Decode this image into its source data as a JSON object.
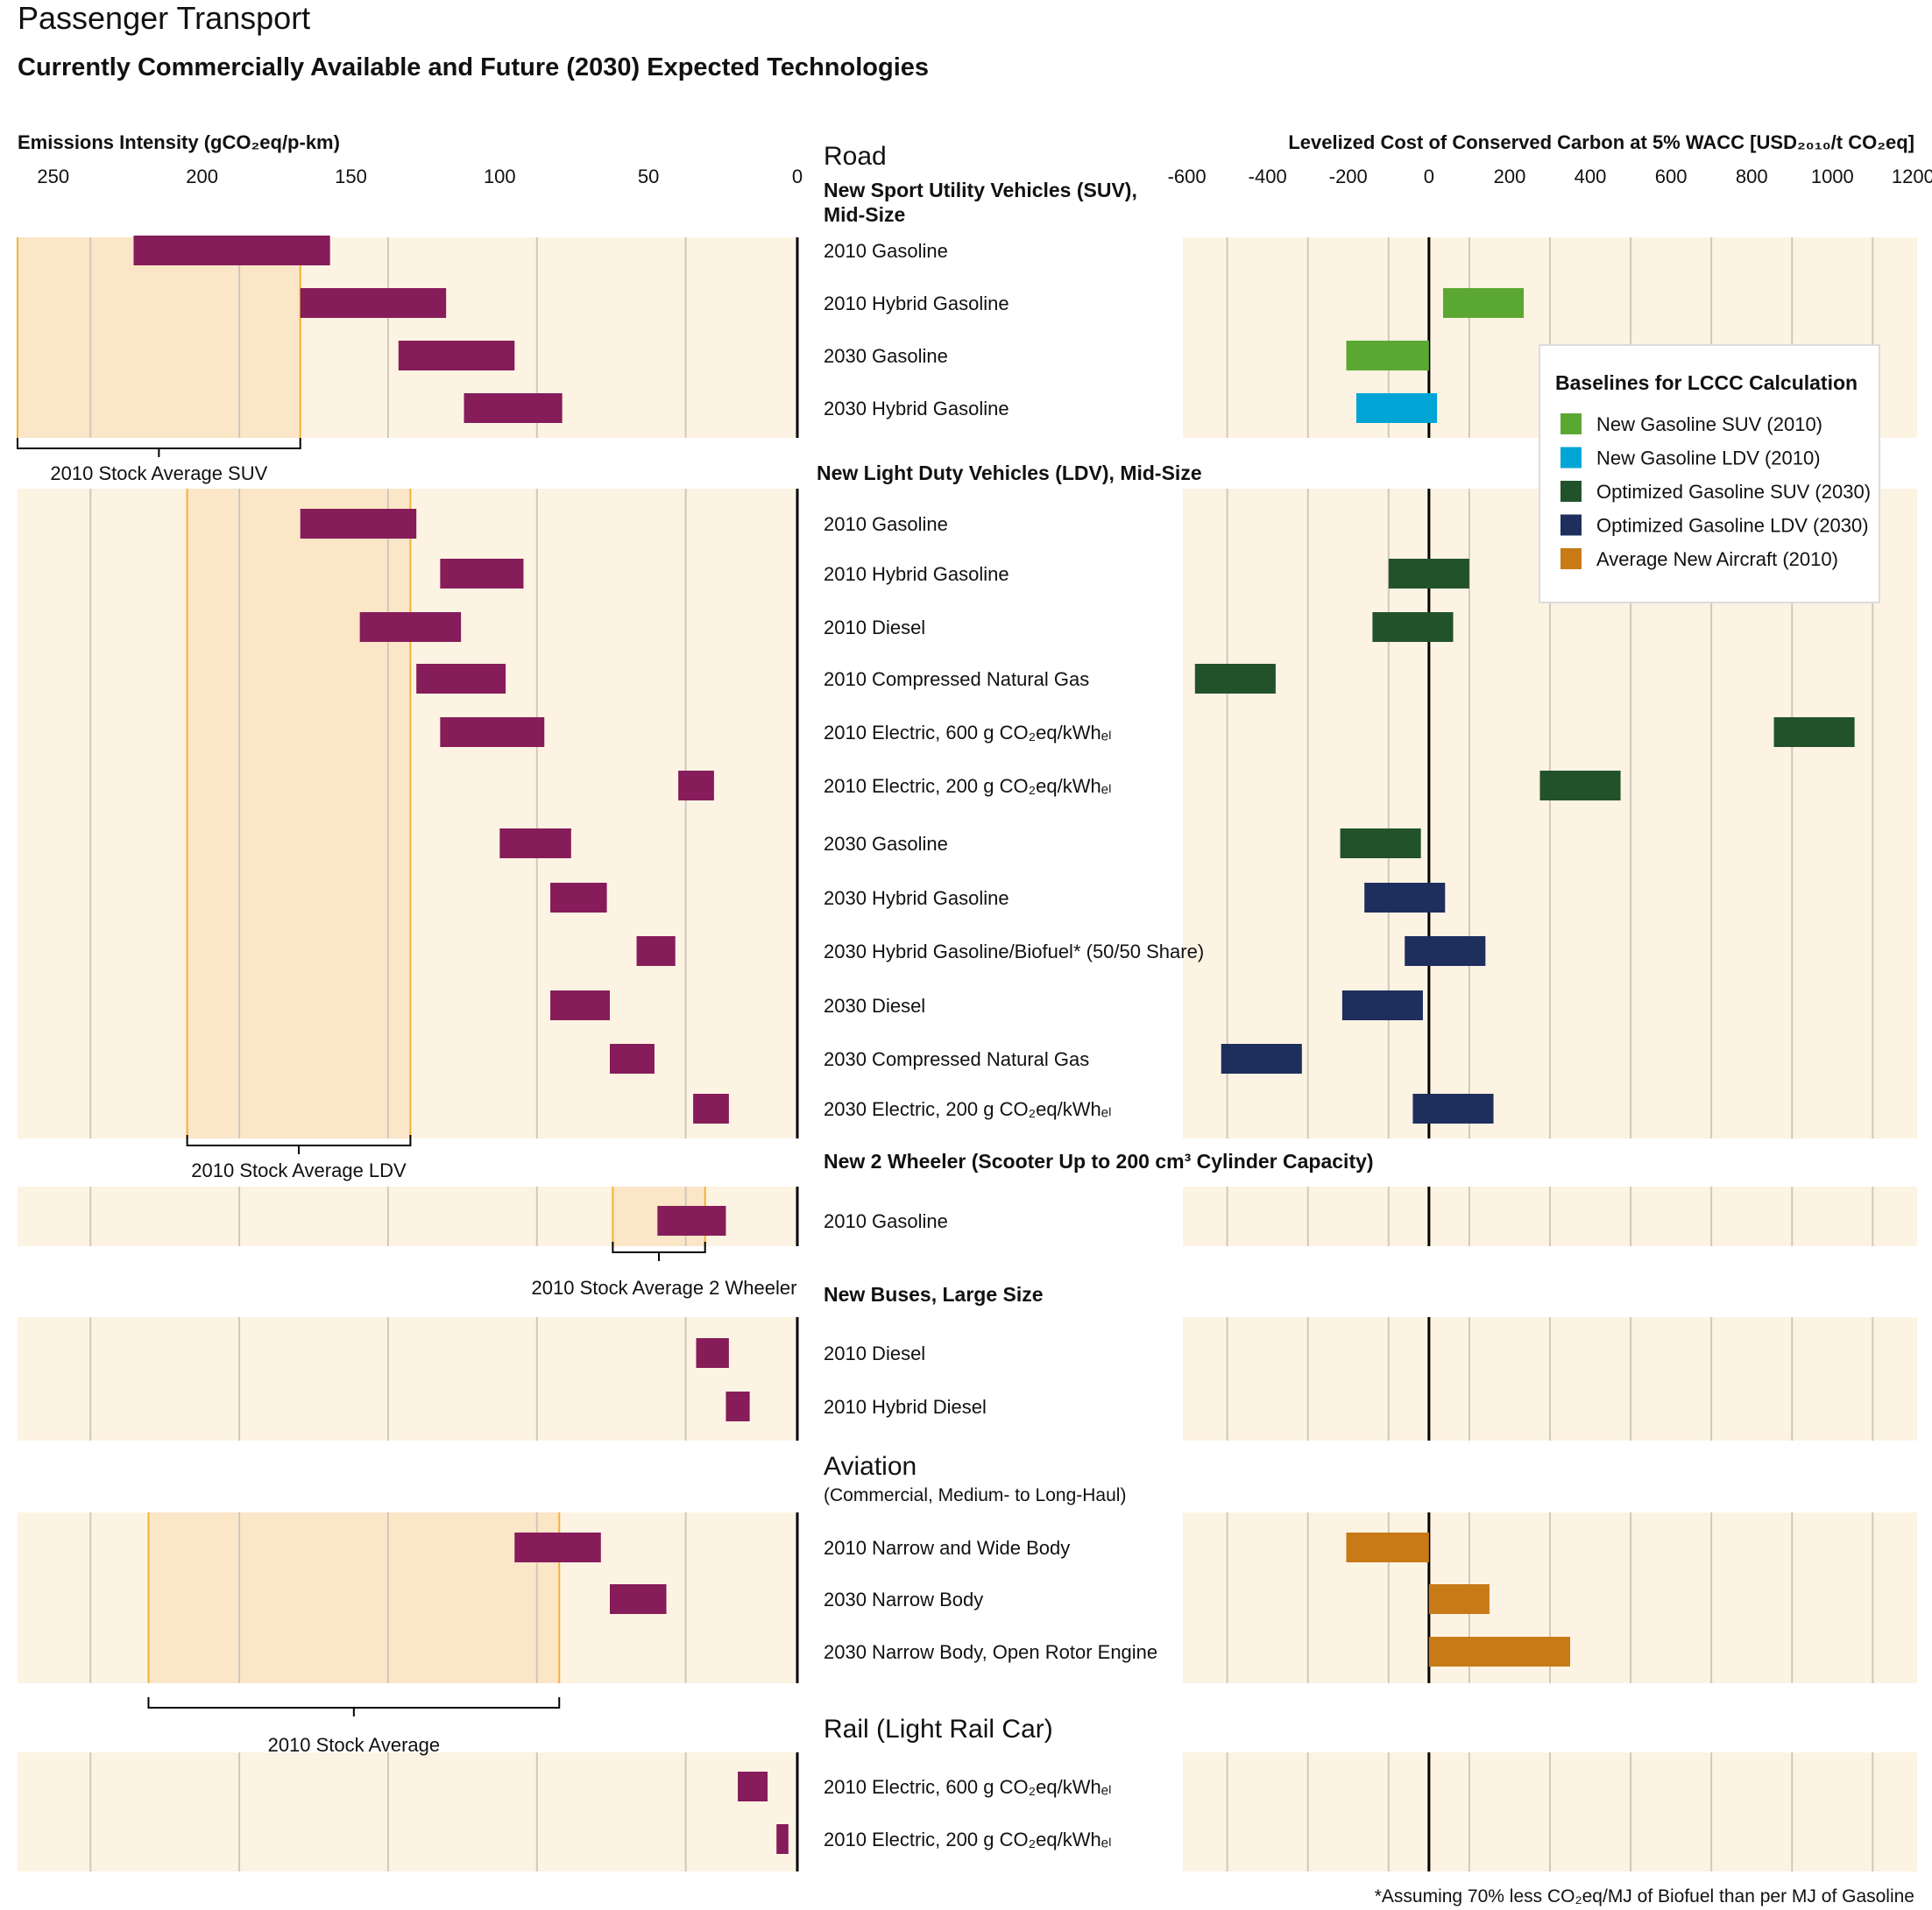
{
  "title": "Passenger Transport",
  "subtitle": "Currently Commercially Available and Future (2030) Expected Technologies",
  "footnote": "*Assuming 70% less CO₂eq/MJ of Biofuel than per MJ of Gasoline",
  "colors": {
    "panel_bg": "#fdf3e3",
    "stock_band": "#fbe6c8",
    "stock_line": "#f2b233",
    "emission_bar": "#861c59",
    "new_gasoline_suv_2010": "#5aa832",
    "new_gasoline_ldv_2010": "#00a5d6",
    "optimized_gasoline_suv_2030": "#22522a",
    "optimized_gasoline_ldv_2030": "#1e2f5d",
    "average_new_aircraft_2010": "#c87a17"
  },
  "chart_data": [
    {
      "type": "bar",
      "orientation": "horizontal-range",
      "xlabel": "Emissions Intensity (gCO₂eq/p-km)",
      "xlim": [
        262,
        0
      ],
      "xticks": [
        250,
        200,
        150,
        100,
        50,
        0
      ],
      "grid": true,
      "sections": [
        {
          "section": "Road",
          "group": "New Sport Utility Vehicles (SUV), Mid-Size",
          "stock_average": {
            "label": "2010 Stock Average SUV",
            "range": [
              262,
              167
            ]
          },
          "items": [
            {
              "label": "2010 Gasoline",
              "range": [
                223,
                157
              ]
            },
            {
              "label": "2010 Hybrid Gasoline",
              "range": [
                167,
                118
              ]
            },
            {
              "label": "2030 Gasoline",
              "range": [
                134,
                95
              ]
            },
            {
              "label": "2030 Hybrid Gasoline",
              "range": [
                112,
                79
              ]
            }
          ]
        },
        {
          "group": "New Light Duty Vehicles (LDV), Mid-Size",
          "stock_average": {
            "label": "2010 Stock Average LDV",
            "range": [
              205,
              130
            ]
          },
          "items": [
            {
              "label": "2010 Gasoline",
              "range": [
                167,
                128
              ]
            },
            {
              "label": "2010 Hybrid Gasoline",
              "range": [
                120,
                92
              ]
            },
            {
              "label": "2010 Diesel",
              "range": [
                147,
                113
              ]
            },
            {
              "label": "2010 Compressed Natural Gas",
              "range": [
                128,
                98
              ]
            },
            {
              "label": "2010 Electric, 600 g CO₂eq/kWhₑₗ",
              "range": [
                120,
                85
              ]
            },
            {
              "label": "2010 Electric, 200 g CO₂eq/kWhₑₗ",
              "range": [
                40,
                28
              ]
            },
            {
              "label": "2030 Gasoline",
              "range": [
                100,
                76
              ]
            },
            {
              "label": "2030 Hybrid Gasoline",
              "range": [
                83,
                64
              ]
            },
            {
              "label": "2030 Hybrid Gasoline/Biofuel* (50/50 Share)",
              "range": [
                54,
                41
              ]
            },
            {
              "label": "2030 Diesel",
              "range": [
                83,
                63
              ]
            },
            {
              "label": "2030 Compressed Natural Gas",
              "range": [
                63,
                48
              ]
            },
            {
              "label": "2030 Electric, 200 g CO₂eq/kWhₑₗ",
              "range": [
                35,
                23
              ]
            }
          ]
        },
        {
          "group": "New 2 Wheeler (Scooter Up to 200 cm³ Cylinder Capacity)",
          "stock_average": {
            "label": "2010 Stock Average 2 Wheeler",
            "range": [
              62,
              31
            ]
          },
          "items": [
            {
              "label": "2010 Gasoline",
              "range": [
                47,
                24
              ]
            }
          ]
        },
        {
          "group": "New Buses, Large Size",
          "items": [
            {
              "label": "2010 Diesel",
              "range": [
                34,
                23
              ]
            },
            {
              "label": "2010 Hybrid Diesel",
              "range": [
                24,
                16
              ]
            }
          ]
        },
        {
          "section": "Aviation",
          "group": "(Commercial, Medium- to Long-Haul)",
          "stock_average": {
            "label": "2010 Stock Average",
            "range": [
              218,
              80
            ]
          },
          "items": [
            {
              "label": "2010 Narrow and Wide Body",
              "range": [
                95,
                66
              ]
            },
            {
              "label": "2030 Narrow Body",
              "range": [
                63,
                44
              ]
            },
            {
              "label": "2030 Narrow Body, Open Rotor Engine",
              "range": null
            }
          ]
        },
        {
          "section": "Rail (Light Rail Car)",
          "items": [
            {
              "label": "2010 Electric, 600 g CO₂eq/kWhₑₗ",
              "range": [
                20,
                10
              ]
            },
            {
              "label": "2010 Electric, 200 g CO₂eq/kWhₑₗ",
              "range": [
                7,
                3
              ]
            }
          ]
        }
      ]
    },
    {
      "type": "bar",
      "orientation": "horizontal-range",
      "xlabel": "Levelized Cost of Conserved Carbon at 5% WACC [USD₂₀₁₀/t CO₂eq]",
      "xlim": [
        -610,
        1210
      ],
      "xticks": [
        -600,
        -400,
        -200,
        0,
        200,
        400,
        600,
        800,
        1000,
        1200
      ],
      "grid": true,
      "legend": {
        "title": "Baselines for LCCC Calculation",
        "position": "top-right",
        "entries": [
          {
            "key": "new_gasoline_suv_2010",
            "label": "New Gasoline SUV (2010)"
          },
          {
            "key": "new_gasoline_ldv_2010",
            "label": "New Gasoline LDV (2010)"
          },
          {
            "key": "optimized_gasoline_suv_2030",
            "label": "Optimized Gasoline SUV (2030)"
          },
          {
            "key": "optimized_gasoline_ldv_2030",
            "label": "Optimized Gasoline LDV (2030)"
          },
          {
            "key": "average_new_aircraft_2010",
            "label": "Average New Aircraft (2010)"
          }
        ]
      },
      "bars": [
        {
          "label": "SUV 2010 Hybrid Gasoline",
          "range": [
            35,
            235
          ],
          "baseline": "new_gasoline_suv_2010"
        },
        {
          "label": "SUV 2030 Gasoline",
          "range": [
            -205,
            0
          ],
          "baseline": "new_gasoline_suv_2010"
        },
        {
          "label": "SUV 2030 Hybrid Gasoline",
          "range": [
            -180,
            20
          ],
          "baseline": "new_gasoline_ldv_2010"
        },
        {
          "label": "LDV 2010 Hybrid Gasoline",
          "range": [
            -100,
            100
          ],
          "baseline": "optimized_gasoline_suv_2030"
        },
        {
          "label": "LDV 2010 Diesel",
          "range": [
            -140,
            60
          ],
          "baseline": "optimized_gasoline_suv_2030"
        },
        {
          "label": "LDV 2010 Compressed Natural Gas",
          "range": [
            -580,
            -380
          ],
          "baseline": "optimized_gasoline_suv_2030"
        },
        {
          "label": "LDV 2010 Electric, 600 g",
          "range": [
            855,
            1055
          ],
          "baseline": "optimized_gasoline_suv_2030"
        },
        {
          "label": "LDV 2010 Electric, 200 g",
          "range": [
            275,
            475
          ],
          "baseline": "optimized_gasoline_suv_2030"
        },
        {
          "label": "LDV 2030 Gasoline",
          "range": [
            -220,
            -20
          ],
          "baseline": "optimized_gasoline_suv_2030"
        },
        {
          "label": "LDV 2030 Hybrid Gasoline",
          "range": [
            -160,
            40
          ],
          "baseline": "optimized_gasoline_ldv_2030"
        },
        {
          "label": "LDV 2030 Hybrid Gasoline/Biofuel",
          "range": [
            -60,
            140
          ],
          "baseline": "optimized_gasoline_ldv_2030"
        },
        {
          "label": "LDV 2030 Diesel",
          "range": [
            -215,
            -15
          ],
          "baseline": "optimized_gasoline_ldv_2030"
        },
        {
          "label": "LDV 2030 Compressed Natural Gas",
          "range": [
            -515,
            -315
          ],
          "baseline": "optimized_gasoline_ldv_2030"
        },
        {
          "label": "LDV 2030 Electric, 200 g",
          "range": [
            -40,
            160
          ],
          "baseline": "optimized_gasoline_ldv_2030"
        },
        {
          "label": "Aviation 2010 Narrow and Wide Body",
          "range": [
            -205,
            0
          ],
          "baseline": "average_new_aircraft_2010"
        },
        {
          "label": "Aviation 2030 Narrow Body",
          "range": [
            0,
            150
          ],
          "baseline": "average_new_aircraft_2010"
        },
        {
          "label": "Aviation 2030 Narrow Body, Open Rotor Engine",
          "range": [
            0,
            350
          ],
          "baseline": "average_new_aircraft_2010"
        }
      ]
    }
  ]
}
